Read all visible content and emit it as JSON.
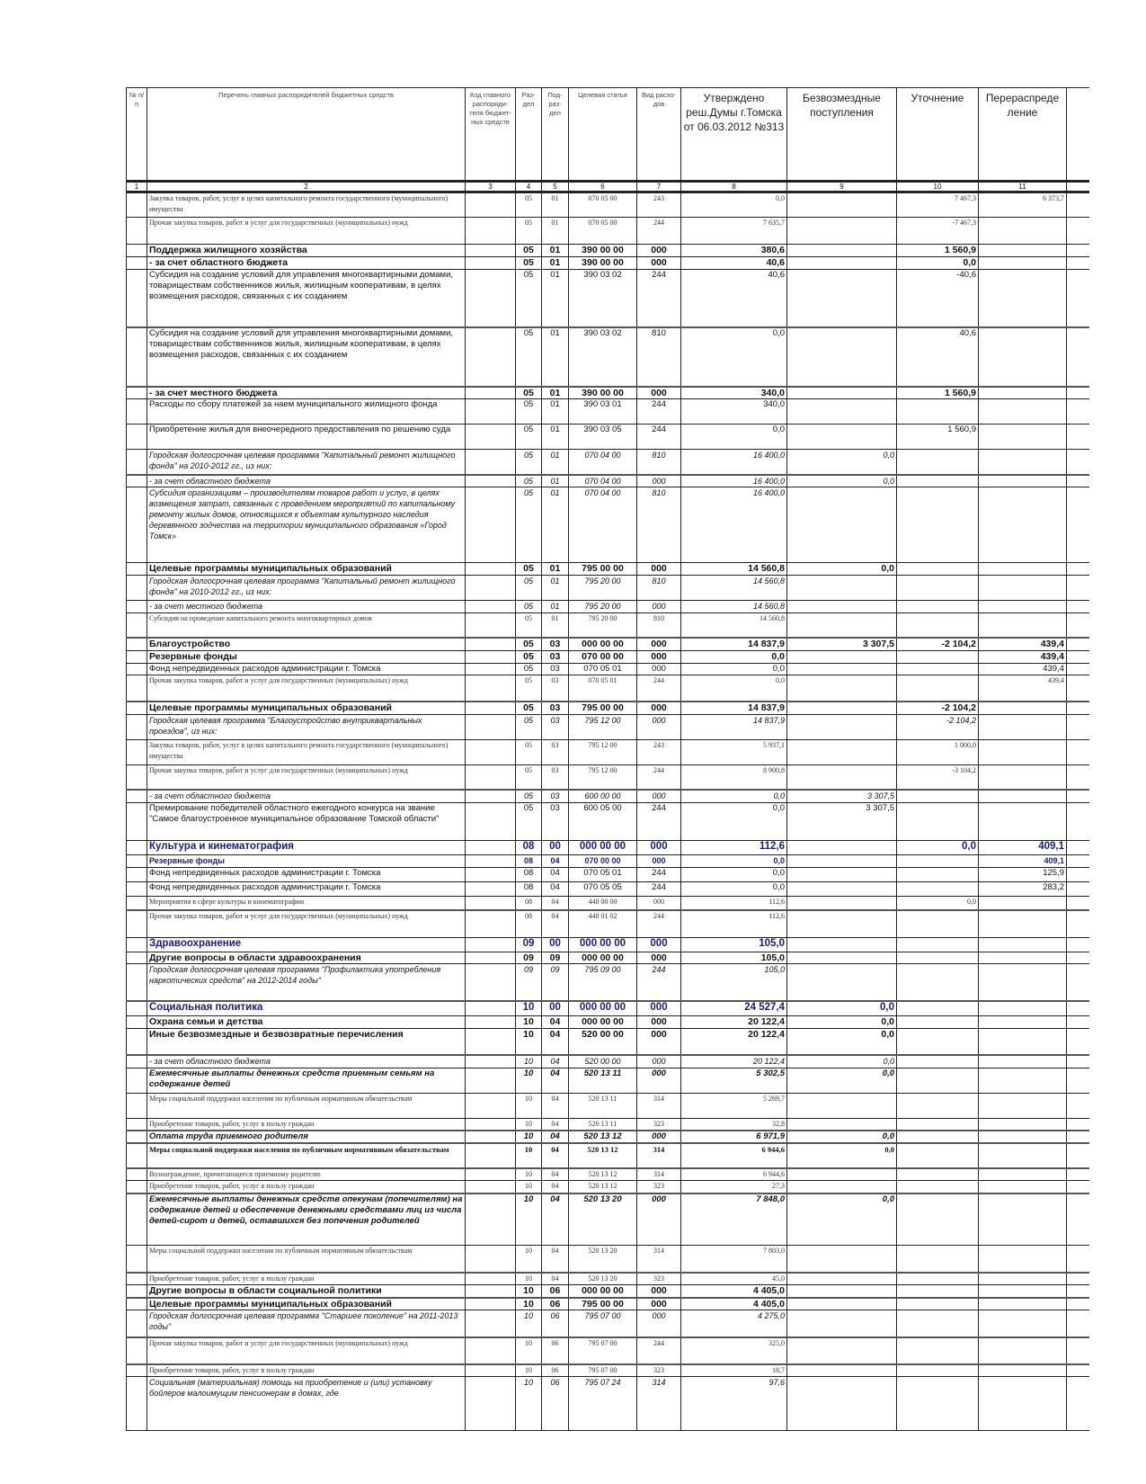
{
  "header": {
    "columns": [
      "№ п/п",
      "Перечень главных распорядителей бюджетных средств",
      "Код главного распоряди-теля бюджет-ных средств",
      "Раз-дел",
      "Под-раз-дел",
      "Целевая статья",
      "Вид расхо-дов",
      "Утверждено реш.Думы г.Томска от 06.03.2012 №313",
      "Безвозмездные поступления",
      "Уточнение",
      "Перераспреде ление",
      ""
    ],
    "numbers": [
      "1",
      "2",
      "3",
      "4",
      "5",
      "6",
      "7",
      "8",
      "9",
      "10",
      "11",
      ""
    ]
  },
  "rows": [
    [
      "Закупка товаров, работ, услуг в целях капитального ремонта государственного (муниципального) имущества",
      "",
      "05",
      "01",
      "070 05 00",
      "243",
      "0,0",
      "",
      "7 467,3",
      "6 373,7"
    ],
    [
      "Прочая закупка товаров, работ и услуг для государственных (муниципальных) нужд",
      "",
      "05",
      "01",
      "070 05 00",
      "244",
      "7 635,7",
      "",
      "-7 467,3",
      ""
    ],
    [
      "Поддержка жилищного хозяйства",
      "",
      "05",
      "01",
      "390 00 00",
      "000",
      "380,6",
      "",
      "1 560,9",
      ""
    ],
    [
      "- за счет областного бюджета",
      "",
      "05",
      "01",
      "390 00 00",
      "000",
      "40,6",
      "",
      "0,0",
      ""
    ],
    [
      "Субсидия на создание условий для управления многоквартирными домами, товариществам собственников жилья, жилищным кооперативам, в целях возмещения расходов, связанных с их созданием",
      "",
      "05",
      "01",
      "390 03 02",
      "244",
      "40,6",
      "",
      "-40,6",
      ""
    ],
    [
      "Субсидия на создание условий для управления многоквартирными домами, товариществам собственников жилья, жилищным кооперативам, в целях возмещения расходов, связанных с их созданием",
      "",
      "05",
      "01",
      "390 03 02",
      "810",
      "0,0",
      "",
      "40,6",
      ""
    ],
    [
      "- за счет местного бюджета",
      "",
      "05",
      "01",
      "390 00 00",
      "000",
      "340,0",
      "",
      "1 560,9",
      ""
    ],
    [
      "Расходы по сбору платежей за наем муниципального жилищного фонда",
      "",
      "05",
      "01",
      "390 03 01",
      "244",
      "340,0",
      "",
      "",
      ""
    ],
    [
      "Приобретение жилья для внеочередного предоставления по решению суда",
      "",
      "05",
      "01",
      "390 03 05",
      "244",
      "0,0",
      "",
      "1 560,9",
      ""
    ],
    [
      "Городская долгосрочная целевая программа \"Капитальный ремонт жилищного фонда\" на 2010-2012 гг., из них:",
      "",
      "05",
      "01",
      "070 04 00",
      "810",
      "16 400,0",
      "0,0",
      "",
      ""
    ],
    [
      "- за счет областного бюджета",
      "",
      "05",
      "01",
      "070 04 00",
      "000",
      "16 400,0",
      "0,0",
      "",
      ""
    ],
    [
      "Субсидия организациям – производителям товаров работ и услуг, в целях возмещения затрат, связанных с проведением мероприятий по капитальному ремонту жилых домов, относящихся к объектам культурного наследия деревянного зодчества на территории муниципального образования «Город Томск»",
      "",
      "05",
      "01",
      "070 04 00",
      "810",
      "16 400,0",
      "",
      "",
      ""
    ],
    [
      "Целевые программы муниципальных образований",
      "",
      "05",
      "01",
      "795 00 00",
      "000",
      "14 560,8",
      "0,0",
      "",
      ""
    ],
    [
      "Городская долгосрочная целевая программа \"Капитальный ремонт жилищного фонда\" на 2010-2012 гг., из них:",
      "",
      "05",
      "01",
      "795 20 00",
      "810",
      "14 560,8",
      "",
      "",
      ""
    ],
    [
      "- за счет местного бюджета",
      "",
      "05",
      "01",
      "795 20 00",
      "000",
      "14 560,8",
      "",
      "",
      ""
    ],
    [
      "Субсидия на проведение капитального ремонта многоквартирных домов",
      "",
      "05",
      "01",
      "795 20 00",
      "810",
      "14 560,8",
      "",
      "",
      ""
    ],
    [
      "Благоустройство",
      "",
      "05",
      "03",
      "000 00 00",
      "000",
      "14 837,9",
      "3 307,5",
      "-2 104,2",
      "439,4"
    ],
    [
      "Резервные фонды",
      "",
      "05",
      "03",
      "070 00 00",
      "000",
      "0,0",
      "",
      "",
      "439,4"
    ],
    [
      "Фонд непредвиденных расходов администрации г. Томска",
      "",
      "05",
      "03",
      "070 05 01",
      "000",
      "0,0",
      "",
      "",
      "439,4"
    ],
    [
      "Прочая закупка товаров, работ и услуг для государственных (муниципальных) нужд",
      "",
      "05",
      "03",
      "070 05 01",
      "244",
      "0,0",
      "",
      "",
      "439,4"
    ],
    [
      "Целевые программы муниципальных образований",
      "",
      "05",
      "03",
      "795 00 00",
      "000",
      "14 837,9",
      "",
      "-2 104,2",
      ""
    ],
    [
      "Городская целевая программа \"Благоустройство внутриквартальных проездов\", из них:",
      "",
      "05",
      "03",
      "795 12 00",
      "000",
      "14 837,9",
      "",
      "-2 104,2",
      ""
    ],
    [
      "Закупка товаров, работ, услуг в целях капитального ремонта государственного (муниципального) имущества",
      "",
      "05",
      "03",
      "795 12 00",
      "243",
      "5 937,1",
      "",
      "1 000,0",
      ""
    ],
    [
      "Прочая закупка товаров, работ и услуг для государственных (муниципальных) нужд",
      "",
      "05",
      "03",
      "795 12 00",
      "244",
      "8 900,8",
      "",
      "-3 104,2",
      ""
    ],
    [
      "- за счет областного бюджета",
      "",
      "05",
      "03",
      "600 00 00",
      "000",
      "0,0",
      "3 307,5",
      "",
      ""
    ],
    [
      "Премирование победителей областного ежегодного конкурса на звание \"Самое благоустроенное муниципальное образование Томской области\"",
      "",
      "05",
      "03",
      "600 05 00",
      "244",
      "0,0",
      "3 307,5",
      "",
      ""
    ],
    [
      "Культура и кинематография",
      "",
      "08",
      "00",
      "000 00 00",
      "000",
      "112,6",
      "",
      "0,0",
      "409,1"
    ],
    [
      "Резервные фонды",
      "",
      "08",
      "04",
      "070 00 00",
      "000",
      "0,0",
      "",
      "",
      "409,1"
    ],
    [
      "Фонд непредвиденных расходов администрации г. Томска",
      "",
      "08",
      "04",
      "070 05 01",
      "244",
      "0,0",
      "",
      "",
      "125,9"
    ],
    [
      "Фонд непредвиденных расходов администрации г. Томска",
      "",
      "08",
      "04",
      "070 05 05",
      "244",
      "0,0",
      "",
      "",
      "283,2"
    ],
    [
      "Мероприятия в сфере культуры и кинематографии",
      "",
      "08",
      "04",
      "440 00 00",
      "000",
      "112,6",
      "",
      "0,0",
      ""
    ],
    [
      "Прочая закупка товаров, работ и услуг для государственных (муниципальных) нужд",
      "",
      "08",
      "04",
      "440 01 02",
      "244",
      "112,6",
      "",
      "",
      ""
    ],
    [
      "Здравоохранение",
      "",
      "09",
      "00",
      "000 00 00",
      "000",
      "105,0",
      "",
      "",
      ""
    ],
    [
      "Другие вопросы в области здравоохранения",
      "",
      "09",
      "09",
      "000 00 00",
      "000",
      "105,0",
      "",
      "",
      ""
    ],
    [
      "Городская долгосрочная целевая программа \"Профилактика употребления наркотических средств\" на 2012-2014 годы\"",
      "",
      "09",
      "09",
      "795 09 00",
      "244",
      "105,0",
      "",
      "",
      ""
    ],
    [
      "Социальная политика",
      "",
      "10",
      "00",
      "000 00 00",
      "000",
      "24 527,4",
      "0,0",
      "",
      ""
    ],
    [
      "Охрана семьи и детства",
      "",
      "10",
      "04",
      "000 00 00",
      "000",
      "20 122,4",
      "0,0",
      "",
      ""
    ],
    [
      "Иные безвозмездные и безвозвратные перечисления",
      "",
      "10",
      "04",
      "520 00 00",
      "000",
      "20 122,4",
      "0,0",
      "",
      ""
    ],
    [
      "- за счет областного бюджета",
      "",
      "10",
      "04",
      "520 00 00",
      "000",
      "20 122,4",
      "0,0",
      "",
      ""
    ],
    [
      "Ежемесячные выплаты денежных средств приемным семьям на содержание детей",
      "",
      "10",
      "04",
      "520 13 11",
      "000",
      "5 302,5",
      "0,0",
      "",
      ""
    ],
    [
      "Меры социальной поддержки населения по публичным нормативным обязательствам",
      "",
      "10",
      "04",
      "520 13 11",
      "314",
      "5 269,7",
      "",
      "",
      ""
    ],
    [
      "Приобретение товаров, работ, услуг в пользу граждан",
      "",
      "10",
      "04",
      "520 13 11",
      "323",
      "32,8",
      "",
      "",
      ""
    ],
    [
      "Оплата труда приемного родителя",
      "",
      "10",
      "04",
      "520 13 12",
      "000",
      "6 971,9",
      "0,0",
      "",
      ""
    ],
    [
      "Меры социальной поддержки населения по публичным нормативным обязательствам",
      "",
      "10",
      "04",
      "520 13 12",
      "314",
      "6 944,6",
      "0,0",
      "",
      ""
    ],
    [
      "Вознаграждение, причитающееся приемному родителю",
      "",
      "10",
      "04",
      "520 13 12",
      "314",
      "6 944,6",
      "",
      "",
      ""
    ],
    [
      "Приобретение товаров, работ, услуг в пользу граждан",
      "",
      "10",
      "04",
      "520 13 12",
      "323",
      "27,3",
      "",
      "",
      ""
    ],
    [
      "Ежемесячные выплаты денежных средств опекунам (попечителям) на содержание детей и обеспечение денежными средствами лиц из числа детей-сирот и детей, оставшихся без попечения родителей",
      "",
      "10",
      "04",
      "520 13 20",
      "000",
      "7 848,0",
      "0,0",
      "",
      ""
    ],
    [
      "Меры социальной поддержки населения по публичным нормативным обязательствам",
      "",
      "10",
      "04",
      "520 13 20",
      "314",
      "7 803,0",
      "",
      "",
      ""
    ],
    [
      "Приобретение товаров, работ, услуг в пользу граждан",
      "",
      "10",
      "04",
      "520 13 20",
      "323",
      "45,0",
      "",
      "",
      ""
    ],
    [
      "Другие вопросы в области социальной политики",
      "",
      "10",
      "06",
      "000 00 00",
      "000",
      "4 405,0",
      "",
      "",
      ""
    ],
    [
      "Целевые программы муниципальных образований",
      "",
      "10",
      "06",
      "795 00 00",
      "000",
      "4 405,0",
      "",
      "",
      ""
    ],
    [
      "Городская долгосрочная целевая программа \"Старшее поколение\" на 2011-2013 годы\"",
      "",
      "10",
      "06",
      "795 07 00",
      "000",
      "4 275,0",
      "",
      "",
      ""
    ],
    [
      "Прочая закупка товаров, работ и услуг для государственных (муниципальных) нужд",
      "",
      "10",
      "06",
      "795 07 00",
      "244",
      "325,0",
      "",
      "",
      ""
    ],
    [
      "Приобретение товаров, работ, услуг в пользу граждан",
      "",
      "10",
      "06",
      "795 07 00",
      "323",
      "18,7",
      "",
      "",
      ""
    ],
    [
      "Социальная (материальная) помощь на приобретение и (или) установку бойлеров малоимущим пенсионерам в домах, где",
      "",
      "10",
      "06",
      "795 07 24",
      "314",
      "97,6",
      "",
      "",
      ""
    ]
  ]
}
